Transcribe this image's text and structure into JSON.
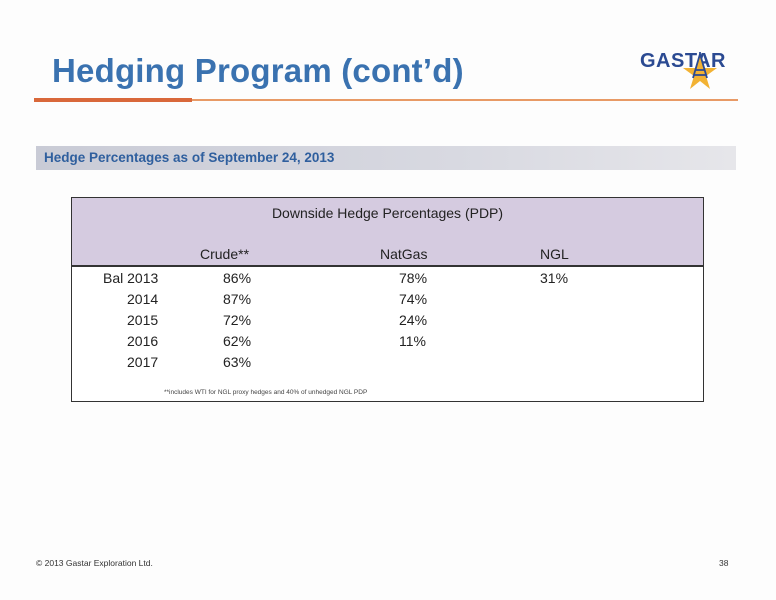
{
  "slide": {
    "title": "Hedging Program (cont’d)",
    "subtitle": "Hedge Percentages as of September 24, 2013",
    "footer": "© 2013 Gastar Exploration Ltd.",
    "page_number": "38"
  },
  "logo": {
    "text": "GASTAR",
    "icon": "star-derrick-icon",
    "colors": {
      "text": "#2b4a92",
      "star": "#f2b233"
    }
  },
  "table": {
    "title": "Downside Hedge Percentages (PDP)",
    "columns": [
      "Crude**",
      "NatGas",
      "NGL"
    ],
    "rows": [
      {
        "period": "Bal 2013",
        "crude": "86%",
        "natgas": "78%",
        "ngl": "31%"
      },
      {
        "period": "2014",
        "crude": "87%",
        "natgas": "74%",
        "ngl": ""
      },
      {
        "period": "2015",
        "crude": "72%",
        "natgas": "24%",
        "ngl": ""
      },
      {
        "period": "2016",
        "crude": "62%",
        "natgas": "11%",
        "ngl": ""
      },
      {
        "period": "2017",
        "crude": "63%",
        "natgas": "",
        "ngl": ""
      }
    ],
    "footnote": "**includes WTI for NGL proxy hedges and 40% of unhedged NGL PDP"
  },
  "colors": {
    "title": "#3a72b0",
    "rule": "#e89a66",
    "table_header_bg": "#d5cbe0"
  }
}
